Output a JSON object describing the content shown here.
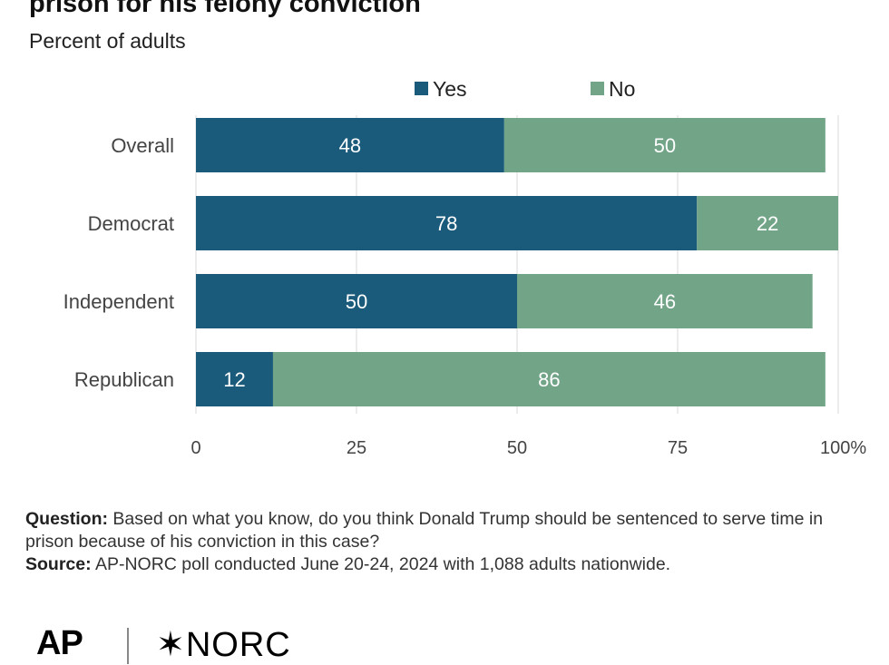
{
  "header": {
    "title": "prison for his felony conviction",
    "subtitle": "Percent of adults"
  },
  "chart_data": {
    "type": "bar",
    "orientation": "horizontal",
    "stacked": true,
    "categories": [
      "Overall",
      "Democrat",
      "Independent",
      "Republican"
    ],
    "series": [
      {
        "name": "Yes",
        "color": "#1a5b7c",
        "values": [
          48,
          78,
          50,
          12
        ]
      },
      {
        "name": "No",
        "color": "#72a487",
        "values": [
          50,
          22,
          46,
          86
        ]
      }
    ],
    "xlim": [
      0,
      100
    ],
    "xticks": [
      "0",
      "25",
      "50",
      "75",
      "100%"
    ],
    "grid": true,
    "legend_position": "top"
  },
  "notes": {
    "question_label": "Question:",
    "question_text": "Based on what you know, do you think Donald Trump should be sentenced to serve time in prison because of his conviction in this case?",
    "source_label": "Source:",
    "source_text": "AP-NORC poll conducted June 20-24, 2024 with 1,088 adults nationwide."
  },
  "logos": {
    "ap": "AP",
    "norc": "NORC",
    "norc_mark": "✶"
  }
}
